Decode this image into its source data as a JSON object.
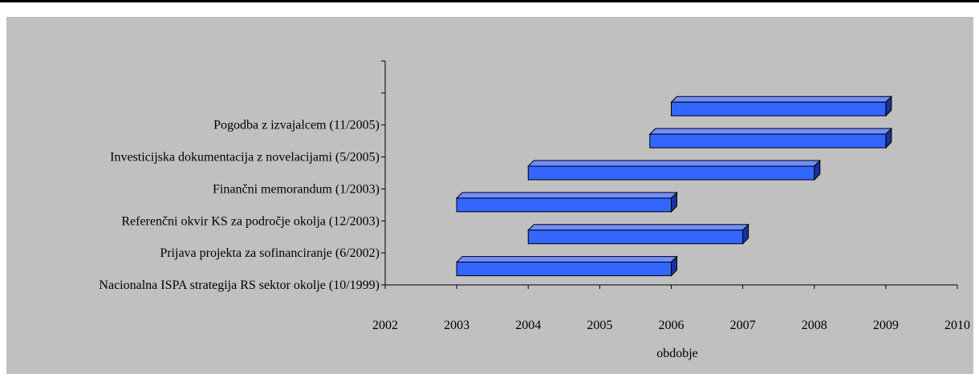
{
  "chart_data": {
    "type": "bar",
    "orientation": "horizontal",
    "style": "3d-floating-bars",
    "categories": [
      "Nacionalna ISPA strategija RS sektor okolje (10/1999)",
      "Prijava projekta za sofinanciranje (6/2002)",
      "Referenčni okvir KS za področje okolja (12/2003)",
      "Finančni memorandum (1/2003)",
      "Investicijska dokumentacija z novelacijami (5/2005)",
      "Pogodba z izvajalcem (11/2005)",
      ""
    ],
    "series": [
      {
        "values": [
          [
            2003,
            2006
          ],
          [
            2004,
            2007
          ],
          [
            2003,
            2006
          ],
          [
            2004,
            2008
          ],
          [
            2005.7,
            2009
          ],
          [
            2006,
            2009
          ]
        ]
      }
    ],
    "xticks": [
      "2002",
      "2003",
      "2004",
      "2005",
      "2006",
      "2007",
      "2008",
      "2009",
      "2010"
    ],
    "xlim": [
      2002,
      2010
    ],
    "title": "",
    "xlabel": "obdobje",
    "ylabel": "",
    "grid": false,
    "legend": "none",
    "colors": {
      "bar_face": "#3366ff",
      "bar_top": "#6f8fff",
      "bar_side": "#1a3399",
      "plot_background": "#c0c0c0"
    }
  }
}
